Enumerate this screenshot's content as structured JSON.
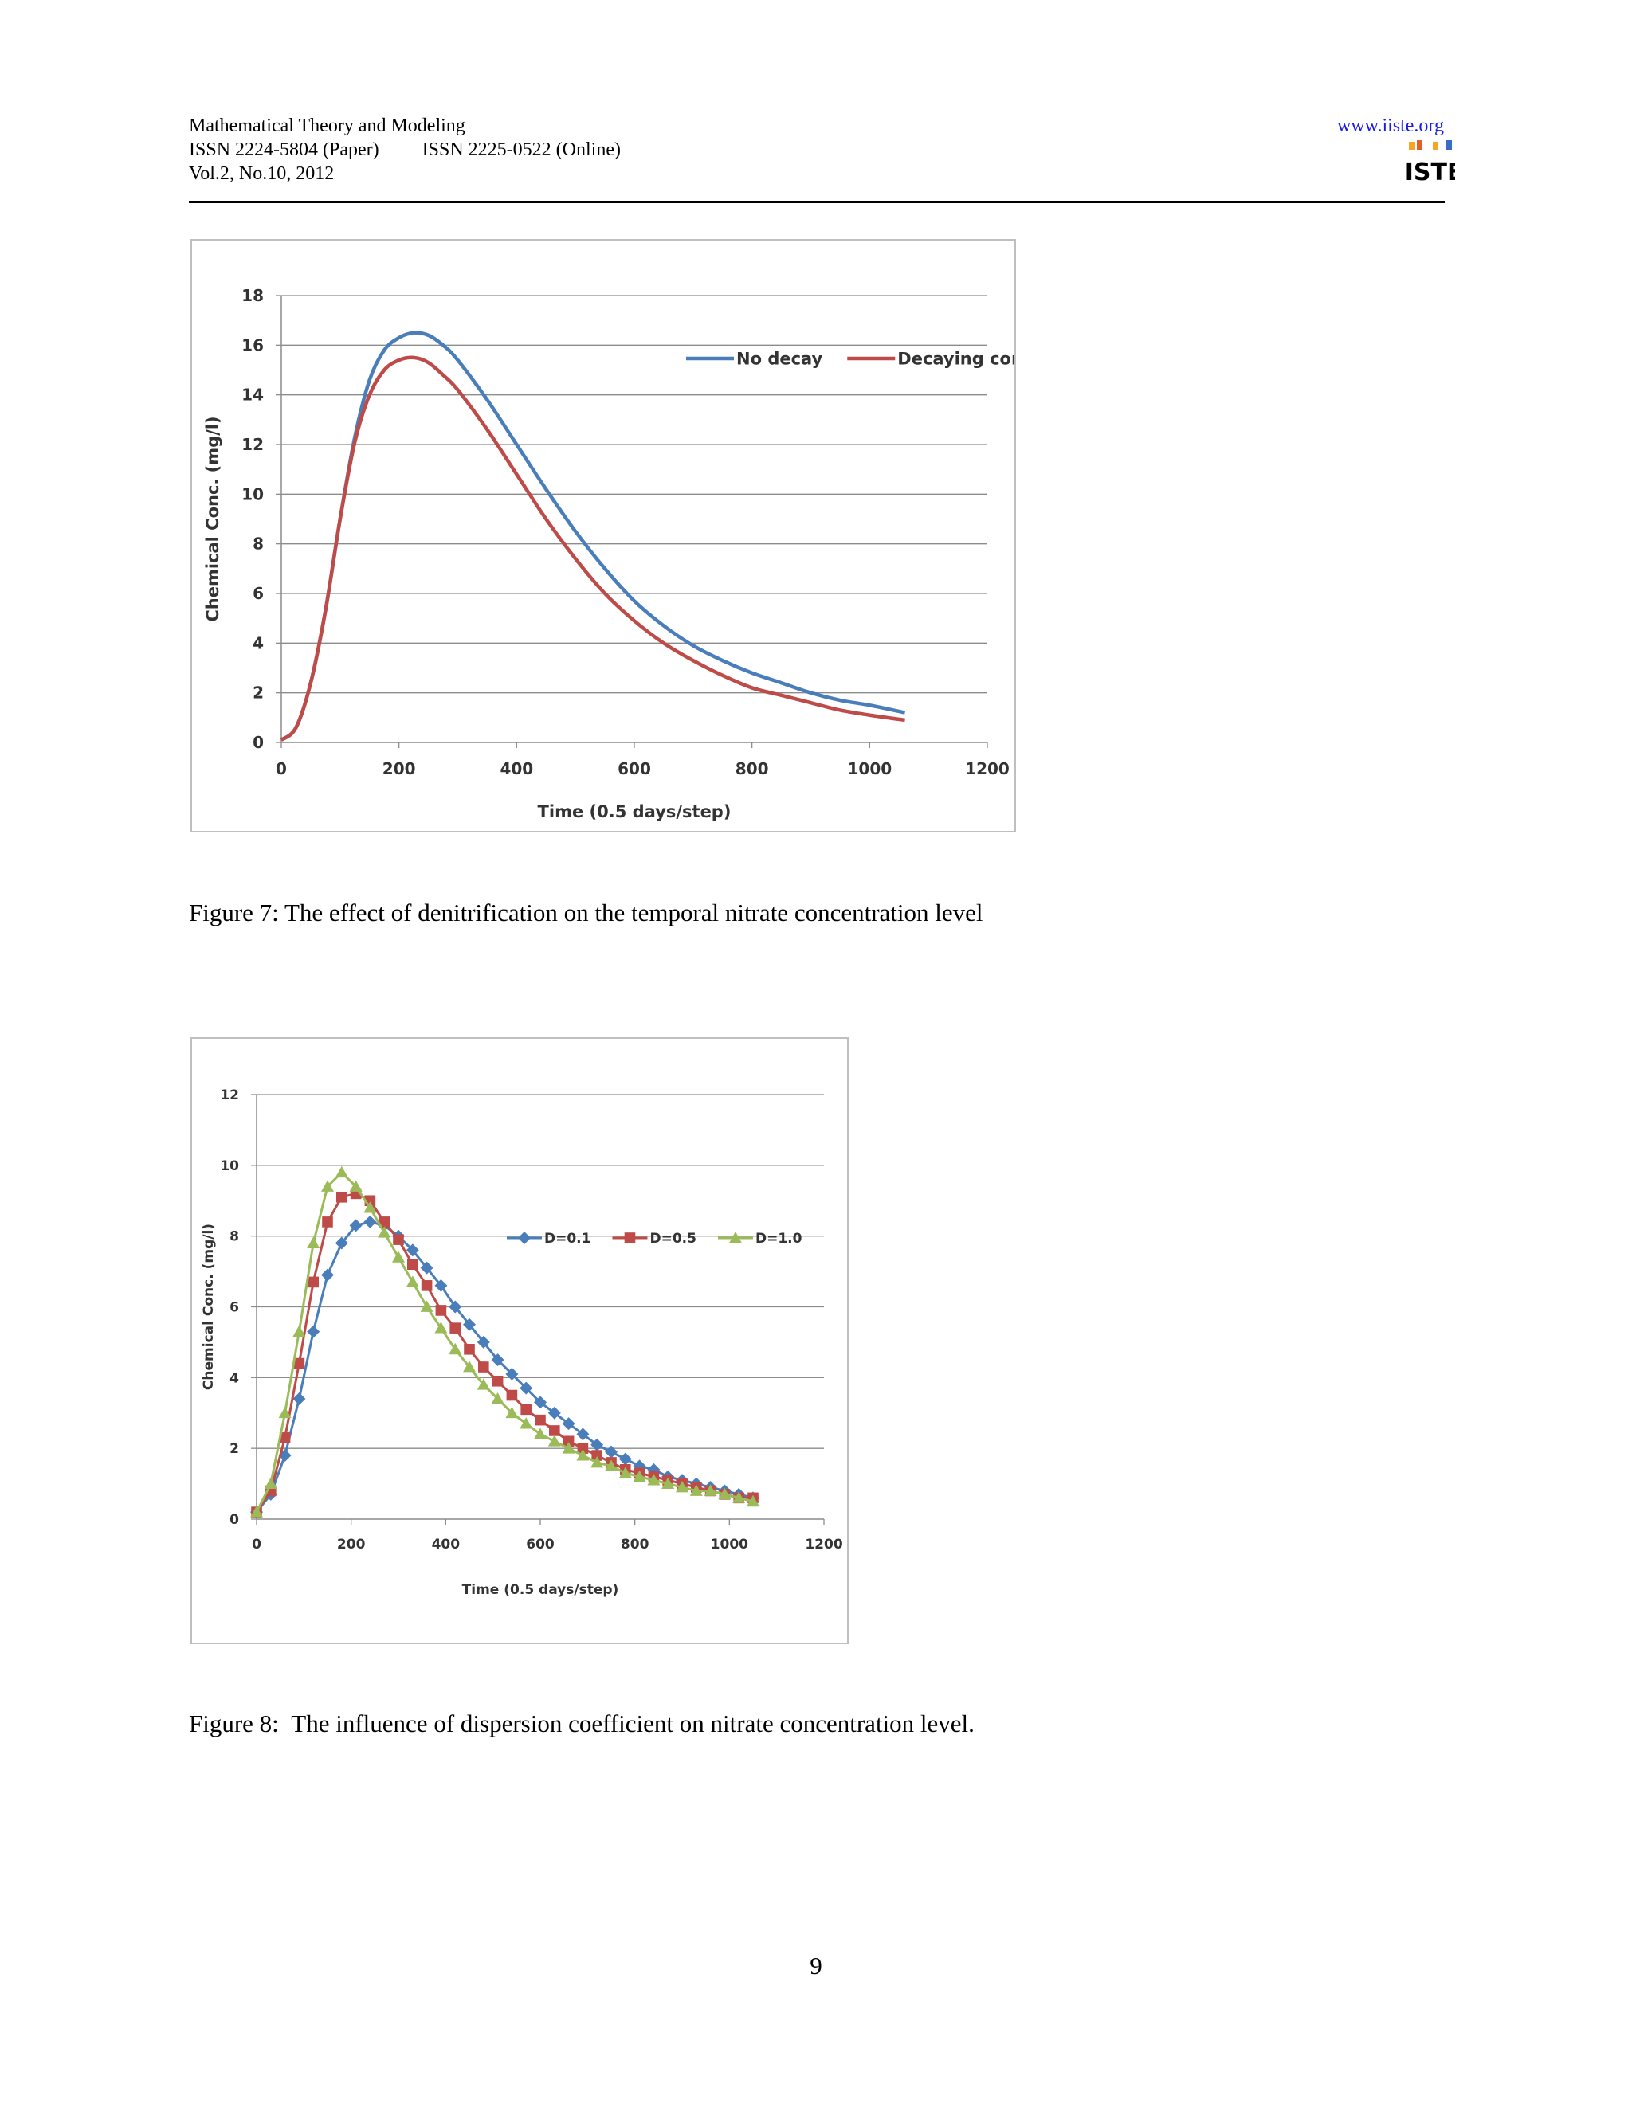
{
  "header": {
    "journal": "Mathematical Theory and Modeling",
    "issn_paper": "ISSN 2224-5804 (Paper)",
    "issn_online": "ISSN 2225-0522 (Online)",
    "volume": "Vol.2, No.10, 2012",
    "url": "www.iiste.org",
    "logo_text": "IISTE"
  },
  "figures": [
    {
      "caption": "Figure 7: The effect of denitrification on the temporal nitrate concentration level",
      "chart_data": {
        "type": "line",
        "xlabel": "Time (0.5 days/step)",
        "ylabel": "Chemical Conc. (mg/l)",
        "xlim": [
          0,
          1200
        ],
        "ylim": [
          0,
          18
        ],
        "xticks": [
          0,
          200,
          400,
          600,
          800,
          1000,
          1200
        ],
        "yticks": [
          0,
          2,
          4,
          6,
          8,
          10,
          12,
          14,
          16,
          18
        ],
        "grid": "horizontal",
        "legend_position": "top-right",
        "series": [
          {
            "name": "No decay",
            "color": "#4a7ebb",
            "x": [
              0,
              25,
              50,
              75,
              100,
              125,
              150,
              175,
              200,
              225,
              250,
              275,
              300,
              350,
              400,
              450,
              500,
              550,
              600,
              650,
              700,
              750,
              800,
              850,
              900,
              950,
              1000,
              1060
            ],
            "y": [
              0.1,
              0.6,
              2.4,
              5.3,
              9.0,
              12.3,
              14.6,
              15.8,
              16.3,
              16.5,
              16.4,
              16.0,
              15.4,
              13.8,
              12.0,
              10.2,
              8.5,
              7.0,
              5.7,
              4.7,
              3.9,
              3.3,
              2.8,
              2.4,
              2.0,
              1.7,
              1.5,
              1.2
            ]
          },
          {
            "name": "Decaying conc.",
            "color": "#be4b48",
            "x": [
              0,
              25,
              50,
              75,
              100,
              125,
              150,
              175,
              200,
              225,
              250,
              275,
              300,
              350,
              400,
              450,
              500,
              550,
              600,
              650,
              700,
              750,
              800,
              850,
              900,
              950,
              1000,
              1060
            ],
            "y": [
              0.1,
              0.6,
              2.4,
              5.3,
              9.0,
              12.1,
              14.0,
              15.0,
              15.4,
              15.5,
              15.3,
              14.8,
              14.2,
              12.6,
              10.8,
              9.0,
              7.4,
              6.0,
              4.9,
              4.0,
              3.3,
              2.7,
              2.2,
              1.9,
              1.6,
              1.3,
              1.1,
              0.9
            ]
          }
        ]
      }
    },
    {
      "caption": "Figure 8:  The influence of dispersion coefficient on nitrate concentration level.",
      "chart_data": {
        "type": "line",
        "xlabel": "Time (0.5 days/step)",
        "ylabel": "Chemical Conc. (mg/l)",
        "xlim": [
          0,
          1200
        ],
        "ylim": [
          0,
          12
        ],
        "xticks": [
          0,
          200,
          400,
          600,
          800,
          1000,
          1200
        ],
        "yticks": [
          0,
          2,
          4,
          6,
          8,
          10,
          12
        ],
        "grid": "horizontal",
        "legend_position": "top-right",
        "series": [
          {
            "name": "D=0.1",
            "color": "#4a7ebb",
            "marker": "diamond",
            "x": [
              0,
              30,
              60,
              90,
              120,
              150,
              180,
              210,
              240,
              270,
              300,
              330,
              360,
              390,
              420,
              450,
              480,
              510,
              540,
              570,
              600,
              630,
              660,
              690,
              720,
              750,
              780,
              810,
              840,
              870,
              900,
              930,
              960,
              990,
              1020,
              1050
            ],
            "y": [
              0.2,
              0.7,
              1.8,
              3.4,
              5.3,
              6.9,
              7.8,
              8.3,
              8.4,
              8.3,
              8.0,
              7.6,
              7.1,
              6.6,
              6.0,
              5.5,
              5.0,
              4.5,
              4.1,
              3.7,
              3.3,
              3.0,
              2.7,
              2.4,
              2.1,
              1.9,
              1.7,
              1.5,
              1.4,
              1.2,
              1.1,
              1.0,
              0.9,
              0.8,
              0.7,
              0.6
            ]
          },
          {
            "name": "D=0.5",
            "color": "#be4b48",
            "marker": "square",
            "x": [
              0,
              30,
              60,
              90,
              120,
              150,
              180,
              210,
              240,
              270,
              300,
              330,
              360,
              390,
              420,
              450,
              480,
              510,
              540,
              570,
              600,
              630,
              660,
              690,
              720,
              750,
              780,
              810,
              840,
              870,
              900,
              930,
              960,
              990,
              1020,
              1050
            ],
            "y": [
              0.2,
              0.8,
              2.3,
              4.4,
              6.7,
              8.4,
              9.1,
              9.2,
              9.0,
              8.4,
              7.9,
              7.2,
              6.6,
              5.9,
              5.4,
              4.8,
              4.3,
              3.9,
              3.5,
              3.1,
              2.8,
              2.5,
              2.2,
              2.0,
              1.8,
              1.6,
              1.4,
              1.3,
              1.2,
              1.1,
              1.0,
              0.9,
              0.8,
              0.7,
              0.6,
              0.6
            ]
          },
          {
            "name": "D=1.0",
            "color": "#9bbb59",
            "marker": "triangle",
            "x": [
              0,
              30,
              60,
              90,
              120,
              150,
              180,
              210,
              240,
              270,
              300,
              330,
              360,
              390,
              420,
              450,
              480,
              510,
              540,
              570,
              600,
              630,
              660,
              690,
              720,
              750,
              780,
              810,
              840,
              870,
              900,
              930,
              960,
              990,
              1020,
              1050
            ],
            "y": [
              0.2,
              1.0,
              3.0,
              5.3,
              7.8,
              9.4,
              9.8,
              9.4,
              8.8,
              8.1,
              7.4,
              6.7,
              6.0,
              5.4,
              4.8,
              4.3,
              3.8,
              3.4,
              3.0,
              2.7,
              2.4,
              2.2,
              2.0,
              1.8,
              1.6,
              1.5,
              1.3,
              1.2,
              1.1,
              1.0,
              0.9,
              0.8,
              0.8,
              0.7,
              0.6,
              0.5
            ]
          }
        ]
      }
    }
  ],
  "page_number": "9"
}
